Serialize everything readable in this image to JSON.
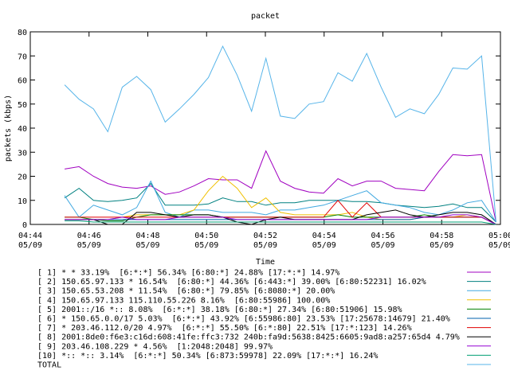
{
  "chart_data": {
    "type": "line",
    "title": "packet",
    "y_label": "packets (kbps)",
    "x_label": "Time",
    "xlim": [
      284,
      300
    ],
    "ylim": [
      0,
      80
    ],
    "xticks": [
      {
        "value": 284,
        "label": [
          "04:44",
          "05/09"
        ]
      },
      {
        "value": 286,
        "label": [
          "04:46",
          "05/09"
        ]
      },
      {
        "value": 288,
        "label": [
          "04:48",
          "05/09"
        ]
      },
      {
        "value": 290,
        "label": [
          "04:50",
          "05/09"
        ]
      },
      {
        "value": 292,
        "label": [
          "04:52",
          "05/09"
        ]
      },
      {
        "value": 294,
        "label": [
          "04:54",
          "05/09"
        ]
      },
      {
        "value": 296,
        "label": [
          "04:56",
          "05/09"
        ]
      },
      {
        "value": 298,
        "label": [
          "04:58",
          "05/09"
        ]
      },
      {
        "value": 300,
        "label": [
          "05:00",
          "05/09"
        ]
      }
    ],
    "yticks": [
      0,
      10,
      20,
      30,
      40,
      50,
      60,
      70,
      80
    ],
    "x": [
      285.17,
      285.66,
      286.15,
      286.64,
      287.13,
      287.62,
      288.1,
      288.59,
      289.08,
      289.57,
      290.06,
      290.55,
      291.04,
      291.53,
      292.02,
      292.51,
      293.0,
      293.49,
      293.98,
      294.47,
      294.96,
      295.45,
      295.94,
      296.43,
      296.92,
      297.41,
      297.9,
      298.38,
      298.87,
      299.36,
      299.85
    ],
    "series": [
      {
        "name": "[ 1] * * 33.19%  [6:*:*] 56.34% [6:80:*] 24.88% [17:*:*] 14.97%",
        "color": "#a000c0",
        "values": [
          23,
          24,
          20,
          17,
          15.5,
          15,
          16,
          12.5,
          13.5,
          16,
          19,
          18.5,
          18.5,
          15,
          30.5,
          18,
          15,
          13.5,
          13,
          19,
          16,
          18,
          18,
          15,
          14.5,
          14,
          22,
          29,
          28.5,
          29,
          1
        ]
      },
      {
        "name": "[ 2] 150.65.97.133 * 16.54%  [6:80:*] 44.36% [6:443:*] 39.00% [6:80:52231] 16.02%",
        "color": "#008080",
        "values": [
          11,
          15,
          10,
          9.5,
          10,
          11,
          17,
          8,
          8,
          8,
          8.5,
          11,
          9.5,
          9.5,
          8,
          9,
          9,
          10,
          10,
          10,
          9.5,
          9.5,
          9,
          8,
          7.5,
          7,
          7.5,
          8.5,
          7,
          7,
          1
        ]
      },
      {
        "name": "[ 3] 150.65.53.208 * 11.54%  [6:80:*] 79.85% [6:8080:*] 20.00%",
        "color": "#40a8e0",
        "values": [
          12,
          3,
          8,
          6,
          4,
          7,
          18,
          5,
          3,
          6,
          6,
          5,
          5,
          5,
          4,
          6,
          6,
          7,
          8,
          10,
          12,
          14,
          9,
          8,
          7,
          5,
          4,
          6,
          9,
          10,
          1
        ]
      },
      {
        "name": "[ 4] 150.65.97.133 115.110.55.226 8.16%  [6:80:55986] 100.00%",
        "color": "#f0c000",
        "values": [
          2,
          2,
          2,
          2,
          3,
          4,
          4,
          4,
          4,
          6,
          14,
          20,
          15,
          7,
          11,
          5,
          4,
          4,
          4,
          4,
          5,
          3,
          2,
          2,
          2,
          3,
          3,
          3,
          4,
          3,
          0
        ]
      },
      {
        "name": "[ 5] 2001::/16 *:: 8.08%  [6:*:*] 38.18% [6:80:*] 27.34% [6:80:51906] 15.98%",
        "color": "#008000",
        "values": [
          3,
          3,
          2,
          1.5,
          1.5,
          3,
          4,
          4,
          4,
          4,
          4,
          3,
          3,
          3,
          3,
          3,
          3,
          3,
          3,
          4,
          3,
          3,
          3,
          3,
          3,
          4,
          3,
          3,
          3,
          3,
          0
        ]
      },
      {
        "name": "[ 6] * 150.65.0.0/17 5.03%  [6:*:*] 43.92% [6:55986:80] 23.53% [17:25678:14679] 21.40%",
        "color": "#0060ad",
        "values": [
          2,
          2,
          2,
          2,
          2,
          2,
          2,
          2,
          2,
          2,
          2,
          2,
          2,
          2,
          2,
          2,
          2,
          2,
          2,
          2,
          2,
          2,
          2,
          2,
          2,
          3,
          3,
          3,
          3,
          3,
          0
        ]
      },
      {
        "name": "[ 7] * 203.46.112.0/20 4.97%  [6:*:*] 55.50% [6:*:80] 22.51% [17:*:123] 14.26%",
        "color": "#e00000",
        "values": [
          3,
          3,
          3,
          3,
          3,
          3,
          3,
          3,
          3,
          3,
          3,
          3,
          3,
          3,
          3,
          3,
          3,
          3,
          3,
          10,
          3,
          9,
          3,
          3,
          3,
          3,
          3,
          3,
          3,
          3,
          0
        ]
      },
      {
        "name": "[ 8] 2001:8de0:f6e3:c16d:608:41fe:ffc3:732 240b:fa9d:5638:8425:6605:9ad8:a257:65d4 4.79%",
        "color": "#000000",
        "values": [
          2,
          2,
          2,
          0,
          0,
          5,
          5,
          4,
          3,
          4,
          4,
          3,
          1,
          0,
          2,
          3,
          2,
          2,
          2,
          2,
          2,
          4,
          5,
          6,
          4,
          3,
          4,
          5,
          5,
          4,
          0
        ]
      },
      {
        "name": "[ 9] 203.46.108.229 * 4.56%  [1:2048:2048] 99.97%",
        "color": "#9400d3",
        "values": [
          2,
          2,
          2,
          2,
          3,
          2,
          2,
          2,
          3,
          3,
          3,
          3,
          2,
          2,
          2,
          2,
          2,
          2,
          2,
          2,
          2,
          2,
          3,
          3,
          3,
          3,
          3,
          4,
          4,
          3,
          0
        ]
      },
      {
        "name": "[10] *:: *:: 3.14%  [6:*:*] 50.34% [6:873:59978] 22.09% [17:*:*] 16.24%",
        "color": "#009e73",
        "values": [
          1.5,
          1.5,
          1,
          1,
          1,
          1,
          1,
          1,
          1,
          1,
          1,
          1,
          1,
          1,
          1,
          1,
          1,
          1,
          1,
          1,
          1,
          1,
          1,
          1,
          1,
          1,
          1,
          1,
          1,
          1,
          0
        ]
      },
      {
        "name": "TOTAL",
        "color": "#56b4e9",
        "values": [
          58,
          52,
          48,
          38.5,
          57,
          61.5,
          56,
          42.5,
          48,
          54,
          61,
          74,
          62,
          47,
          69,
          45,
          44,
          50,
          51,
          63,
          59.5,
          71,
          57,
          44.5,
          48,
          46,
          54,
          65,
          64.5,
          70,
          1
        ]
      }
    ]
  }
}
